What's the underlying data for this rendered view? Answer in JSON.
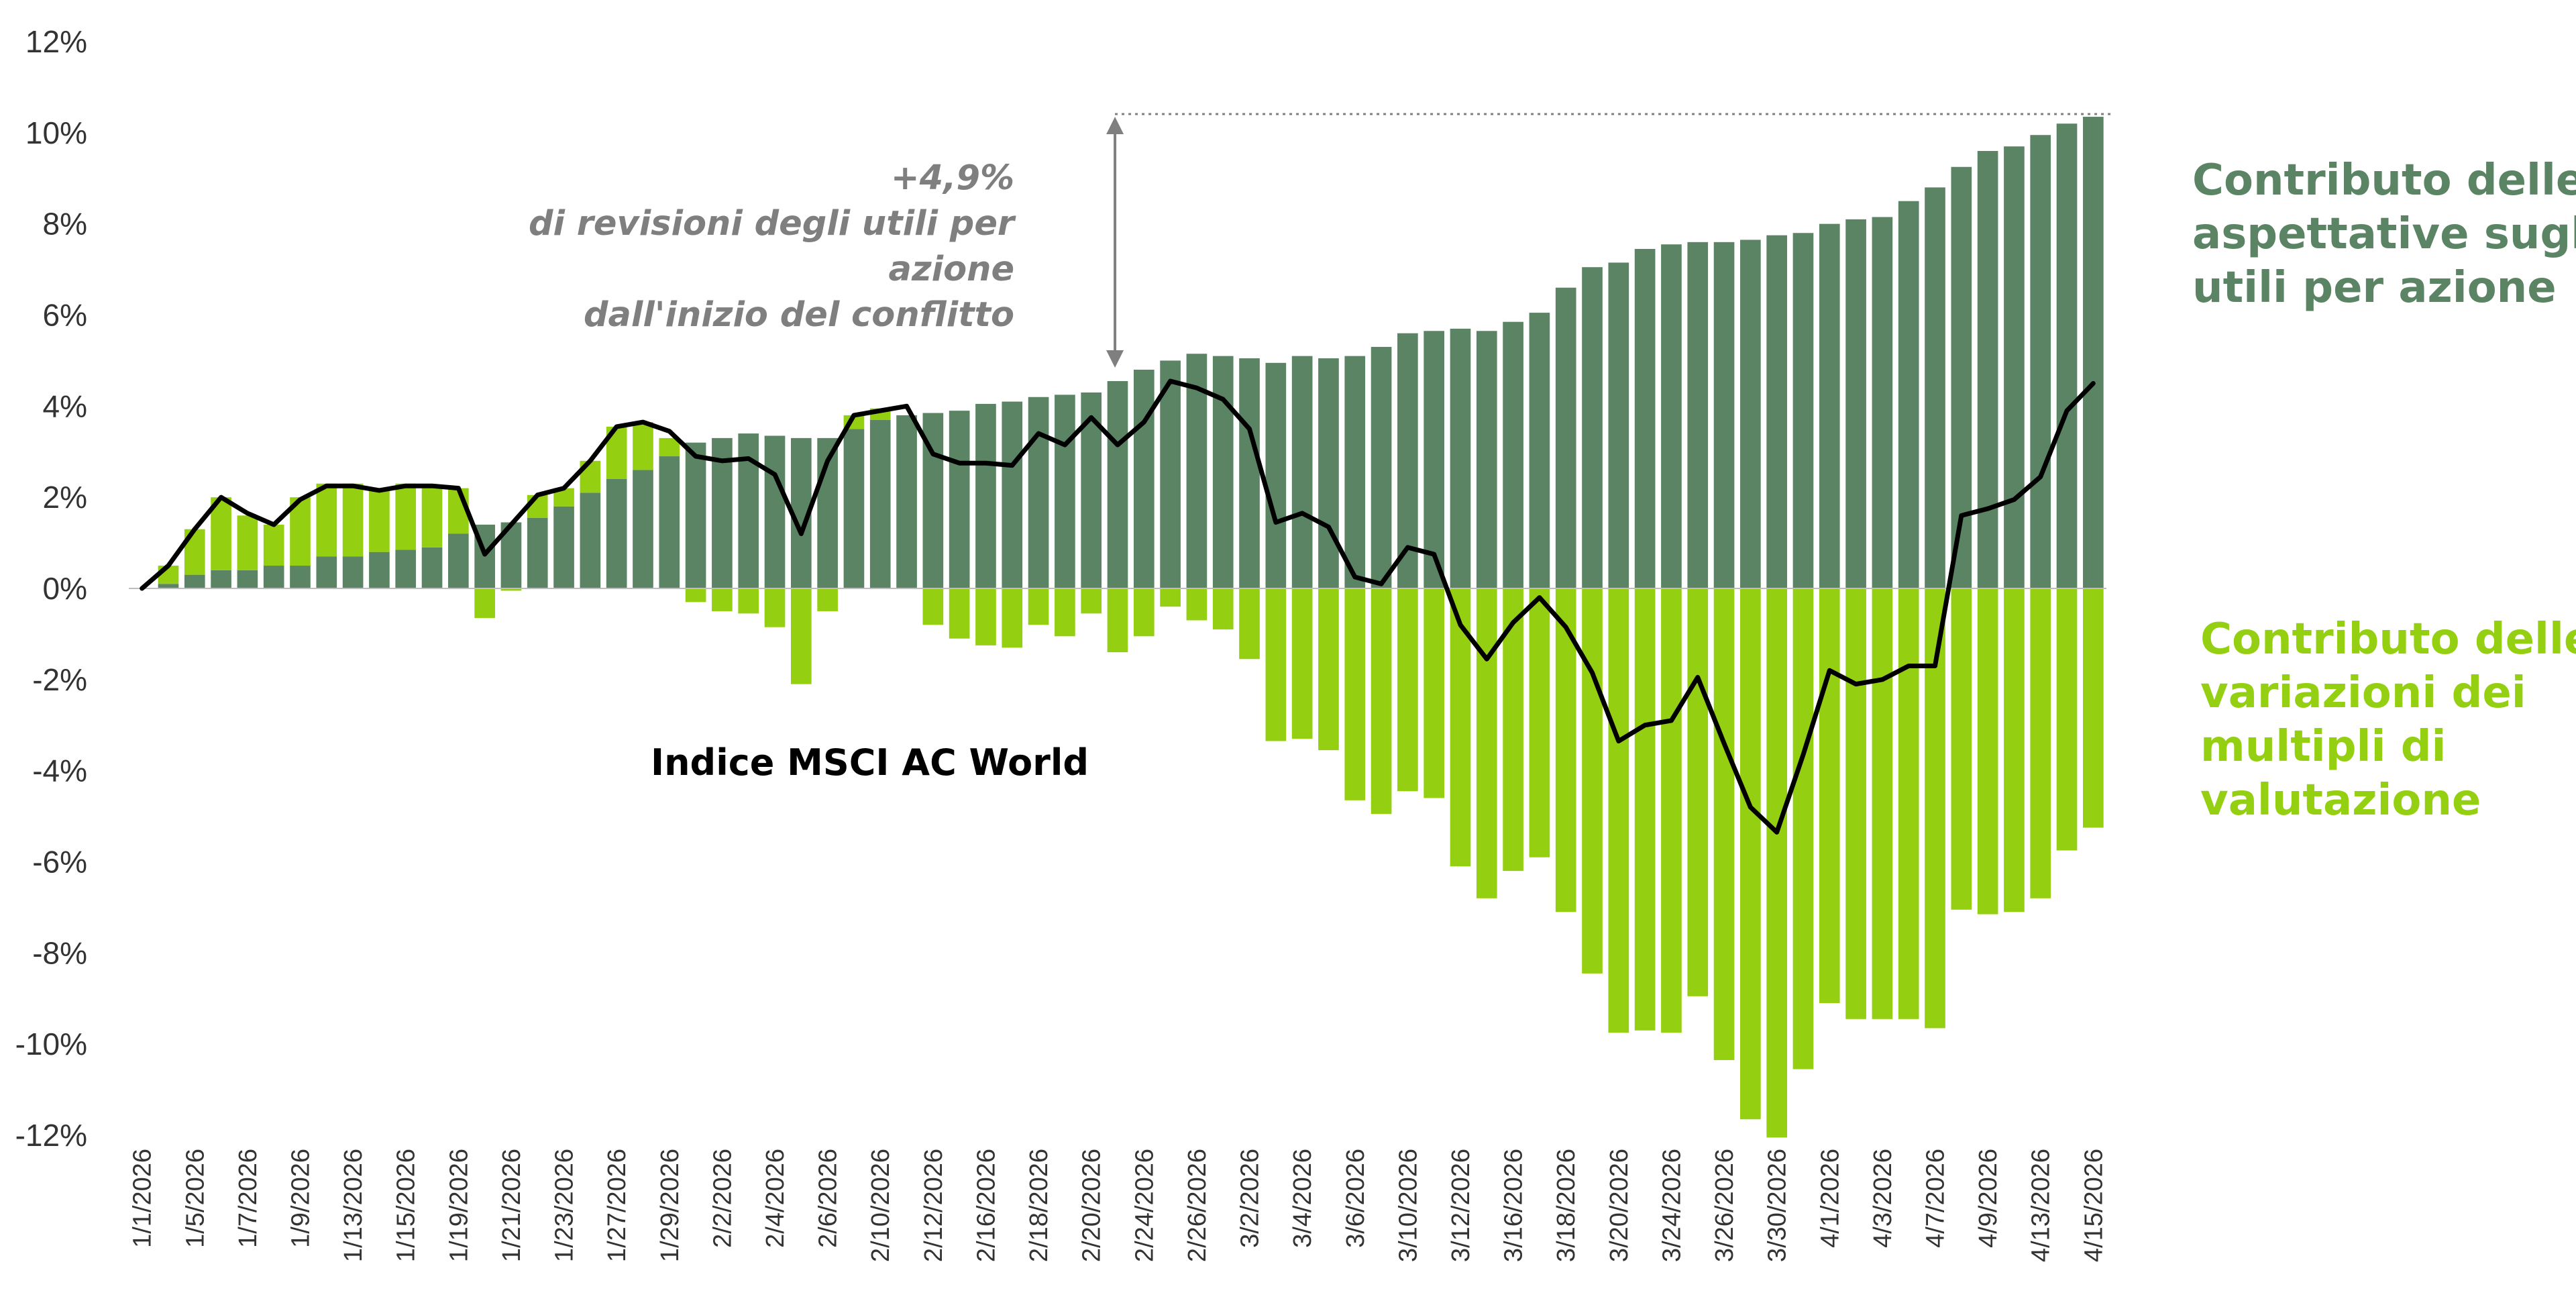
{
  "chart_data": {
    "type": "bar",
    "title": "",
    "xlabel": "",
    "ylabel": "",
    "ylim": [
      -12,
      12
    ],
    "y_ticks": [
      12,
      10,
      8,
      6,
      4,
      2,
      0,
      -2,
      -4,
      -6,
      -8,
      -10,
      -12
    ],
    "y_tick_labels": [
      "12%",
      "10%",
      "8%",
      "6%",
      "4%",
      "2%",
      "0%",
      "-2%",
      "-4%",
      "-6%",
      "-8%",
      "-10%",
      "-12%"
    ],
    "grid": false,
    "legend": "inline labels on right side",
    "colors": {
      "eps": "#5b8464",
      "multiples": "#95cf12",
      "index_line": "#000000",
      "annotation": "#7f7f7f",
      "tick_text": "#333333"
    },
    "x_dates": [
      "1/1/2026",
      "1/2/2026",
      "1/5/2026",
      "1/6/2026",
      "1/7/2026",
      "1/8/2026",
      "1/9/2026",
      "1/12/2026",
      "1/13/2026",
      "1/14/2026",
      "1/15/2026",
      "1/16/2026",
      "1/19/2026",
      "1/20/2026",
      "1/21/2026",
      "1/22/2026",
      "1/23/2026",
      "1/26/2026",
      "1/27/2026",
      "1/28/2026",
      "1/29/2026",
      "1/30/2026",
      "2/2/2026",
      "2/3/2026",
      "2/4/2026",
      "2/5/2026",
      "2/6/2026",
      "2/9/2026",
      "2/10/2026",
      "2/11/2026",
      "2/12/2026",
      "2/13/2026",
      "2/16/2026",
      "2/17/2026",
      "2/18/2026",
      "2/19/2026",
      "2/20/2026",
      "2/23/2026",
      "2/24/2026",
      "2/25/2026",
      "2/26/2026",
      "2/27/2026",
      "3/2/2026",
      "3/3/2026",
      "3/4/2026",
      "3/5/2026",
      "3/6/2026",
      "3/9/2026",
      "3/10/2026",
      "3/11/2026",
      "3/12/2026",
      "3/13/2026",
      "3/16/2026",
      "3/17/2026",
      "3/18/2026",
      "3/19/2026",
      "3/20/2026",
      "3/23/2026",
      "3/24/2026",
      "3/25/2026",
      "3/26/2026",
      "3/27/2026",
      "3/30/2026",
      "3/31/2026",
      "4/1/2026",
      "4/2/2026",
      "4/3/2026",
      "4/6/2026",
      "4/7/2026",
      "4/8/2026",
      "4/9/2026",
      "4/10/2026",
      "4/13/2026",
      "4/14/2026",
      "4/15/2026"
    ],
    "x_tick_labels": [
      "1/1/2026",
      "1/5/2026",
      "1/7/2026",
      "1/9/2026",
      "1/13/2026",
      "1/15/2026",
      "1/19/2026",
      "1/21/2026",
      "1/23/2026",
      "1/27/2026",
      "1/29/2026",
      "2/2/2026",
      "2/4/2026",
      "2/6/2026",
      "2/10/2026",
      "2/12/2026",
      "2/16/2026",
      "2/18/2026",
      "2/20/2026",
      "2/24/2026",
      "2/26/2026",
      "3/2/2026",
      "3/4/2026",
      "3/6/2026",
      "3/10/2026",
      "3/12/2026",
      "3/16/2026",
      "3/18/2026",
      "3/20/2026",
      "3/24/2026",
      "3/26/2026",
      "3/30/2026",
      "4/1/2026",
      "4/3/2026",
      "4/7/2026",
      "4/9/2026",
      "4/13/2026",
      "4/15/2026"
    ],
    "series": [
      {
        "name": "Contributo delle aspettative sugli utili per azione",
        "type": "bar",
        "values": [
          0.0,
          0.1,
          0.3,
          0.4,
          0.4,
          0.5,
          0.5,
          0.7,
          0.7,
          0.8,
          0.85,
          0.9,
          1.2,
          1.4,
          1.45,
          1.55,
          1.8,
          2.1,
          2.4,
          2.6,
          2.9,
          3.2,
          3.3,
          3.4,
          3.35,
          3.3,
          3.3,
          3.5,
          3.7,
          3.8,
          3.85,
          3.9,
          4.05,
          4.1,
          4.2,
          4.25,
          4.3,
          4.55,
          4.8,
          5.0,
          5.15,
          5.1,
          5.05,
          4.95,
          5.1,
          5.05,
          5.1,
          5.3,
          5.6,
          5.65,
          5.7,
          5.65,
          5.85,
          6.05,
          6.6,
          7.05,
          7.15,
          7.45,
          7.55,
          7.6,
          7.6,
          7.65,
          7.75,
          7.8,
          8.0,
          8.1,
          8.15,
          8.5,
          8.8,
          9.25,
          9.6,
          9.7,
          9.95,
          10.2,
          10.35
        ]
      },
      {
        "name": "Contributo delle variazioni dei multipli di valutazione",
        "type": "bar",
        "values": [
          0.0,
          0.4,
          1.0,
          1.6,
          1.2,
          0.9,
          1.5,
          1.6,
          1.6,
          1.35,
          1.45,
          1.3,
          1.0,
          -0.65,
          -0.05,
          0.5,
          0.4,
          0.7,
          1.15,
          1.05,
          0.4,
          -0.3,
          -0.5,
          -0.55,
          -0.85,
          -2.1,
          -0.5,
          0.3,
          0.25,
          0.0,
          -0.8,
          -1.1,
          -1.25,
          -1.3,
          -0.8,
          -1.05,
          -0.55,
          -1.4,
          -1.05,
          -0.4,
          -0.7,
          -0.9,
          -1.55,
          -3.35,
          -3.3,
          -3.55,
          -4.65,
          -4.95,
          -4.45,
          -4.6,
          -6.1,
          -6.8,
          -6.2,
          -5.9,
          -7.1,
          -8.45,
          -9.75,
          -9.7,
          -9.75,
          -8.95,
          -10.35,
          -11.65,
          -12.05,
          -10.55,
          -9.1,
          -9.45,
          -9.45,
          -9.45,
          -9.65,
          -7.05,
          -7.15,
          -7.1,
          -6.8,
          -5.75,
          -5.25
        ]
      },
      {
        "name": "Indice MSCI AC World",
        "type": "line",
        "values": [
          0.0,
          0.5,
          1.3,
          2.0,
          1.65,
          1.4,
          1.95,
          2.25,
          2.25,
          2.15,
          2.25,
          2.25,
          2.2,
          0.75,
          1.4,
          2.05,
          2.2,
          2.8,
          3.55,
          3.65,
          3.45,
          2.9,
          2.8,
          2.85,
          2.5,
          1.2,
          2.8,
          3.8,
          3.9,
          4.0,
          2.95,
          2.75,
          2.75,
          2.7,
          3.4,
          3.15,
          3.75,
          3.15,
          3.65,
          4.55,
          4.4,
          4.15,
          3.5,
          1.45,
          1.65,
          1.35,
          0.25,
          0.1,
          0.9,
          0.75,
          -0.8,
          -1.55,
          -0.75,
          -0.2,
          -0.85,
          -1.85,
          -3.35,
          -3.0,
          -2.9,
          -1.95,
          -3.4,
          -4.8,
          -5.35,
          -3.65,
          -1.8,
          -2.1,
          -2.0,
          -1.7,
          -1.7,
          1.6,
          1.75,
          1.95,
          2.45,
          3.9,
          4.5
        ]
      }
    ],
    "annotations": {
      "revision_lines": [
        "+4,9%",
        "di revisioni degli utili per",
        "azione",
        "dall'inizio del conflitto"
      ],
      "revision_arrow_from": 4.55,
      "revision_arrow_to": 10.35,
      "series_labels": {
        "eps": [
          "Contributo delle",
          "aspettative sugli",
          "utili per azione"
        ],
        "multiples": [
          "Contributo delle",
          "variazioni dei",
          "multipli di",
          "valutazione"
        ],
        "index": "Indice MSCI AC World"
      }
    }
  }
}
